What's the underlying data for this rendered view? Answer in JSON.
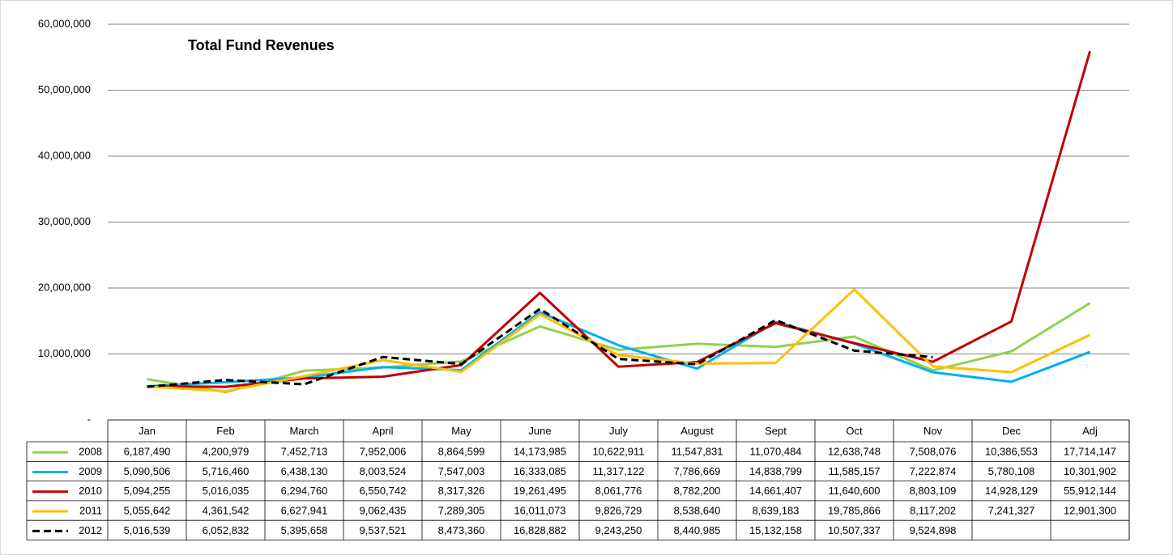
{
  "chart_data": {
    "type": "line",
    "title": "Total Fund Revenues",
    "categories": [
      "Jan",
      "Feb",
      "March",
      "April",
      "May",
      "June",
      "July",
      "August",
      "Sept",
      "Oct",
      "Nov",
      "Dec",
      "Adj"
    ],
    "ylim": [
      0,
      60000000
    ],
    "yticks": [
      {
        "value": 0,
        "label": "-"
      },
      {
        "value": 10000000,
        "label": "10,000,000"
      },
      {
        "value": 20000000,
        "label": "20,000,000"
      },
      {
        "value": 30000000,
        "label": "30,000,000"
      },
      {
        "value": 40000000,
        "label": "40,000,000"
      },
      {
        "value": 50000000,
        "label": "50,000,000"
      },
      {
        "value": 60000000,
        "label": "60,000,000"
      }
    ],
    "grid": true,
    "series": [
      {
        "name": "2008",
        "color": "#92d050",
        "dashed": false,
        "values": [
          6187490,
          4200979,
          7452713,
          7952006,
          8864599,
          14173985,
          10622911,
          11547831,
          11070484,
          12638748,
          7508076,
          10386553,
          17714147
        ],
        "value_labels": [
          "6,187,490",
          "4,200,979",
          "7,452,713",
          "7,952,006",
          "8,864,599",
          "14,173,985",
          "10,622,911",
          "11,547,831",
          "11,070,484",
          "12,638,748",
          "7,508,076",
          "10,386,553",
          "17,714,147"
        ]
      },
      {
        "name": "2009",
        "color": "#00b0f0",
        "dashed": false,
        "values": [
          5090506,
          5716460,
          6438130,
          8003524,
          7547003,
          16333085,
          11317122,
          7786669,
          14838799,
          11585157,
          7222874,
          5780108,
          10301902
        ],
        "value_labels": [
          "5,090,506",
          "5,716,460",
          "6,438,130",
          "8,003,524",
          "7,547,003",
          "16,333,085",
          "11,317,122",
          "7,786,669",
          "14,838,799",
          "11,585,157",
          "7,222,874",
          "5,780,108",
          "10,301,902"
        ]
      },
      {
        "name": "2010",
        "color": "#c00000",
        "dashed": false,
        "values": [
          5094255,
          5016035,
          6294760,
          6550742,
          8317326,
          19261495,
          8061776,
          8782200,
          14661407,
          11640600,
          8803109,
          14928129,
          55912144
        ],
        "value_labels": [
          "5,094,255",
          "5,016,035",
          "6,294,760",
          "6,550,742",
          "8,317,326",
          "19,261,495",
          "8,061,776",
          "8,782,200",
          "14,661,407",
          "11,640,600",
          "8,803,109",
          "14,928,129",
          "55,912,144"
        ]
      },
      {
        "name": "2011",
        "color": "#ffc000",
        "dashed": false,
        "values": [
          5055642,
          4361542,
          6627941,
          9062435,
          7289305,
          16011073,
          9826729,
          8538640,
          8639183,
          19785866,
          8117202,
          7241327,
          12901300
        ],
        "value_labels": [
          "5,055,642",
          "4,361,542",
          "6,627,941",
          "9,062,435",
          "7,289,305",
          "16,011,073",
          "9,826,729",
          "8,538,640",
          "8,639,183",
          "19,785,866",
          "8,117,202",
          "7,241,327",
          "12,901,300"
        ]
      },
      {
        "name": "2012",
        "color": "#000000",
        "dashed": true,
        "values": [
          5016539,
          6052832,
          5395658,
          9537521,
          8473360,
          16828882,
          9243250,
          8440985,
          15132158,
          10507337,
          9524898,
          null,
          null
        ],
        "value_labels": [
          "5,016,539",
          "6,052,832",
          "5,395,658",
          "9,537,521",
          "8,473,360",
          "16,828,882",
          "9,243,250",
          "8,440,985",
          "15,132,158",
          "10,507,337",
          "9,524,898",
          null,
          null
        ]
      }
    ]
  }
}
